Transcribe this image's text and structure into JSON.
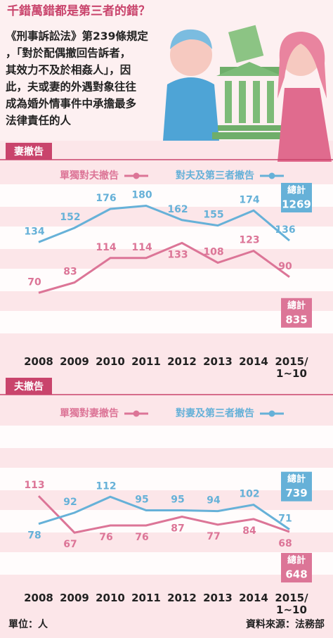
{
  "header": {
    "title": "千錯萬錯都是第三者的錯？",
    "intro": [
      "《刑事訴訟法》第239條規定",
      "，「對於配偶撤回告訴者，",
      "其效力不及於相姦人」，因",
      "此，夫或妻的外遇對象往往",
      "成為婚外情事件中承擔最多",
      "法律責任的人"
    ]
  },
  "chart_data": [
    {
      "type": "line",
      "section_label": "妻撤告",
      "categories": [
        "2008",
        "2009",
        "2010",
        "2011",
        "2012",
        "2013",
        "2014",
        "2015/\n1~10"
      ],
      "ylim": [
        0,
        200
      ],
      "total_label": "總計",
      "series": [
        {
          "name": "單獨對夫撤告",
          "color": "#dc7597",
          "values": [
            70,
            83,
            114,
            114,
            133,
            108,
            123,
            90
          ],
          "total": 835
        },
        {
          "name": "對夫及第三者撤告",
          "color": "#66b1d8",
          "values": [
            134,
            152,
            176,
            180,
            162,
            155,
            174,
            136
          ],
          "total": 1269
        }
      ]
    },
    {
      "type": "line",
      "section_label": "夫撤告",
      "categories": [
        "2008",
        "2009",
        "2010",
        "2011",
        "2012",
        "2013",
        "2014",
        "2015/\n1~10"
      ],
      "ylim": [
        0,
        190
      ],
      "total_label": "總計",
      "series": [
        {
          "name": "單獨對妻撤告",
          "color": "#dc7597",
          "values": [
            113,
            67,
            76,
            76,
            87,
            77,
            84,
            68
          ],
          "total": 648
        },
        {
          "name": "對妻及第三者撤告",
          "color": "#66b1d8",
          "values": [
            78,
            92,
            112,
            95,
            95,
            94,
            102,
            71
          ],
          "total": 739
        }
      ]
    }
  ],
  "footer": {
    "unit": "單位：人",
    "source": "資料來源：法務部"
  }
}
